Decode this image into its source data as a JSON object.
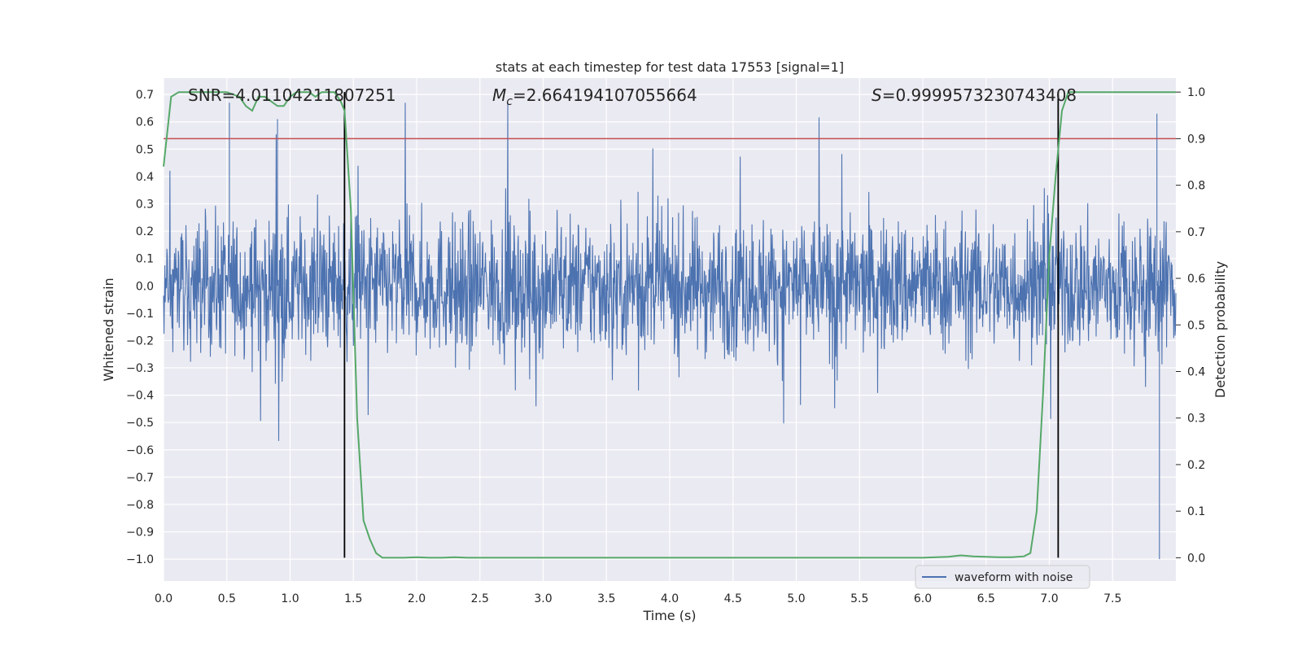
{
  "chart_data": {
    "type": "line",
    "title": "stats at each timestep for test data 17553 [signal=1]",
    "xlabel": "Time (s)",
    "ylabel": "Whitened strain",
    "ylabel_right": "Detection probability",
    "xlim": [
      0.0,
      8.0
    ],
    "ylim": [
      -1.08,
      0.76
    ],
    "ylim_right": [
      -0.05,
      1.03
    ],
    "xticks": [
      "0.0",
      "0.5",
      "1.0",
      "1.5",
      "2.0",
      "2.5",
      "3.0",
      "3.5",
      "4.0",
      "4.5",
      "5.0",
      "5.5",
      "6.0",
      "6.5",
      "7.0",
      "7.5"
    ],
    "yticks": [
      "0.7",
      "0.6",
      "0.5",
      "0.4",
      "0.3",
      "0.2",
      "0.1",
      "0.0",
      "−0.1",
      "−0.2",
      "−0.3",
      "−0.4",
      "−0.5",
      "−0.6",
      "−0.7",
      "−0.8",
      "−0.9",
      "−1.0"
    ],
    "yticks_right": [
      "1.0",
      "0.9",
      "0.8",
      "0.7",
      "0.6",
      "0.5",
      "0.4",
      "0.3",
      "0.2",
      "0.1",
      "0.0"
    ],
    "annotations": {
      "snr": "SNR=4.01104211807251",
      "mc_symbol": "M",
      "mc_sub": "c",
      "mc_value": "=2.664194107055664",
      "s_symbol": "S",
      "s_value": "=0.9999573230743408"
    },
    "threshold_line": {
      "y_right": 0.9,
      "color": "#c44e52"
    },
    "vlines": [
      1.43,
      7.07
    ],
    "legend": "waveform with noise",
    "colors": {
      "waveform": "#4c72b0",
      "probability": "#55a868",
      "threshold": "#c44e52",
      "vline": "#000000",
      "background": "#eaeaf2",
      "grid": "#ffffff"
    },
    "series": [
      {
        "name": "Detection probability",
        "axis": "right",
        "x": [
          0.0,
          0.06,
          0.12,
          0.2,
          0.3,
          0.4,
          0.5,
          0.6,
          0.65,
          0.7,
          0.75,
          0.8,
          0.85,
          0.9,
          0.95,
          1.0,
          1.05,
          1.1,
          1.15,
          1.2,
          1.25,
          1.3,
          1.35,
          1.4,
          1.43,
          1.48,
          1.53,
          1.58,
          1.63,
          1.68,
          1.73,
          1.8,
          1.9,
          2.0,
          2.1,
          2.2,
          2.3,
          2.4,
          2.6,
          2.8,
          3.0,
          3.2,
          3.4,
          3.6,
          3.8,
          4.0,
          4.2,
          4.4,
          4.6,
          4.8,
          5.0,
          5.2,
          5.4,
          5.6,
          5.8,
          6.0,
          6.2,
          6.3,
          6.4,
          6.5,
          6.6,
          6.7,
          6.8,
          6.85,
          6.9,
          6.95,
          7.0,
          7.05,
          7.1,
          7.15,
          7.2,
          7.3,
          7.5,
          7.7,
          7.9,
          8.0
        ],
        "values": [
          0.84,
          0.99,
          1.0,
          1.0,
          1.0,
          1.0,
          1.0,
          0.99,
          0.97,
          0.96,
          0.99,
          0.99,
          0.98,
          0.97,
          0.97,
          0.99,
          1.0,
          1.0,
          1.0,
          0.99,
          1.0,
          1.0,
          1.0,
          0.98,
          0.96,
          0.75,
          0.3,
          0.08,
          0.04,
          0.01,
          0.0,
          0.0,
          0.0,
          0.001,
          0.0,
          0.0,
          0.001,
          0.0,
          0.0,
          0.0,
          0.0,
          0.0,
          0.0,
          0.0,
          0.0,
          0.0,
          0.0,
          0.0,
          0.0,
          0.0,
          0.0,
          0.0,
          0.0,
          0.0,
          0.0,
          0.0,
          0.002,
          0.005,
          0.003,
          0.002,
          0.001,
          0.001,
          0.003,
          0.01,
          0.1,
          0.35,
          0.65,
          0.82,
          0.96,
          1.0,
          1.0,
          1.0,
          1.0,
          1.0,
          1.0,
          1.0
        ]
      },
      {
        "name": "waveform with noise",
        "axis": "left",
        "envelope_typical": 0.18,
        "spike_range": [
          -0.58,
          0.67
        ],
        "notable_extrema": [
          {
            "x": 0.52,
            "y": 0.67
          },
          {
            "x": 0.9,
            "y": 0.61
          },
          {
            "x": 7.85,
            "y": 0.63
          },
          {
            "x": 7.87,
            "y": -1.0
          }
        ]
      }
    ]
  }
}
